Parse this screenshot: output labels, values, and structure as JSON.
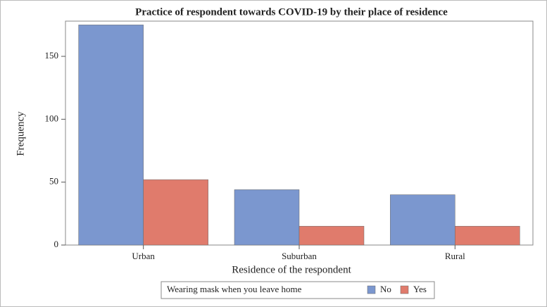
{
  "chart_data": {
    "type": "bar",
    "title": "Practice of respondent towards COVID-19 by their place of residence",
    "x_label": "Residence of the respondent",
    "y_label": "Frequency",
    "categories": [
      "Urban",
      "Suburban",
      "Rural"
    ],
    "series": [
      {
        "name": "No",
        "color": "#7b97cf",
        "values": [
          175,
          44,
          40
        ]
      },
      {
        "name": "Yes",
        "color": "#e07b6c",
        "values": [
          52,
          15,
          15
        ]
      }
    ],
    "legend_title": "Wearing mask when you leave home",
    "legend_position": "bottom",
    "ylim": [
      0,
      178
    ],
    "yticks": [
      0,
      50,
      100,
      150
    ],
    "grid": false
  }
}
